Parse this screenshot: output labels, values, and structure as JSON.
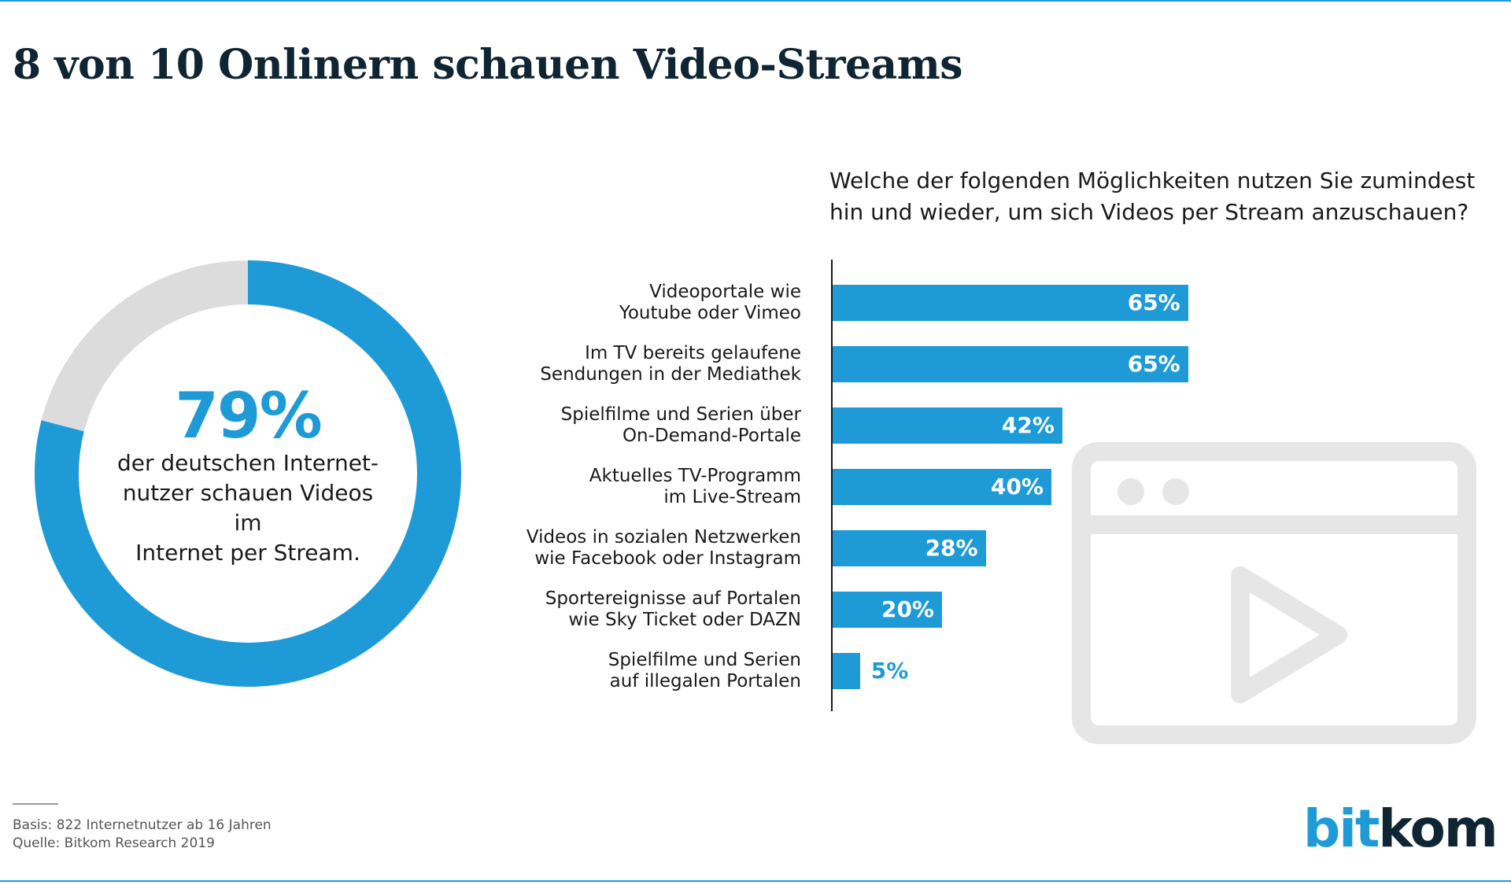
{
  "title": "8 von 10 Onlinern schauen Video-Streams",
  "donut": {
    "value": 79,
    "value_label": "79%",
    "text_lines": [
      "der deutschen Internet-",
      "nutzer schauen Videos im",
      "Internet per Stream."
    ],
    "colors": {
      "filled": "#1e9bd7",
      "remainder": "#dcdcdc"
    }
  },
  "chart_data": {
    "type": "bar",
    "orientation": "horizontal",
    "title": "Welche der folgenden Möglichkeiten nutzen Sie zumindest hin und wieder, um sich Videos per Stream anzuschauen?",
    "title_lines": [
      "Welche der folgenden Möglichkeiten nutzen Sie zumindest",
      "hin und wieder, um sich Videos per Stream anzuschauen?"
    ],
    "categories": [
      [
        "Videoportale wie",
        "Youtube oder Vimeo"
      ],
      [
        "Im TV bereits gelaufene",
        "Sendungen in der Mediathek"
      ],
      [
        "Spielfilme und Serien über",
        "On-Demand-Portale"
      ],
      [
        "Aktuelles TV-Programm",
        "im Live-Stream"
      ],
      [
        "Videos in sozialen Netzwerken",
        "wie Facebook oder Instagram"
      ],
      [
        "Sportereignisse auf Portalen",
        "wie Sky Ticket oder DAZN"
      ],
      [
        "Spielfilme und Serien",
        "auf illegalen Portalen"
      ]
    ],
    "values": [
      65,
      65,
      42,
      40,
      28,
      20,
      5
    ],
    "value_labels": [
      "65%",
      "65%",
      "42%",
      "40%",
      "28%",
      "20%",
      "5%"
    ],
    "unit": "%",
    "color": "#1e9bd7",
    "xlim": [
      0,
      100
    ],
    "grid": false,
    "legend": "none"
  },
  "footer": {
    "basis": "Basis: 822 Internetnutzer ab 16 Jahren",
    "source": "Quelle: Bitkom Research 2019"
  },
  "logo": {
    "part1": "bit",
    "part2": "kom"
  },
  "icon": "browser-video-play-icon"
}
